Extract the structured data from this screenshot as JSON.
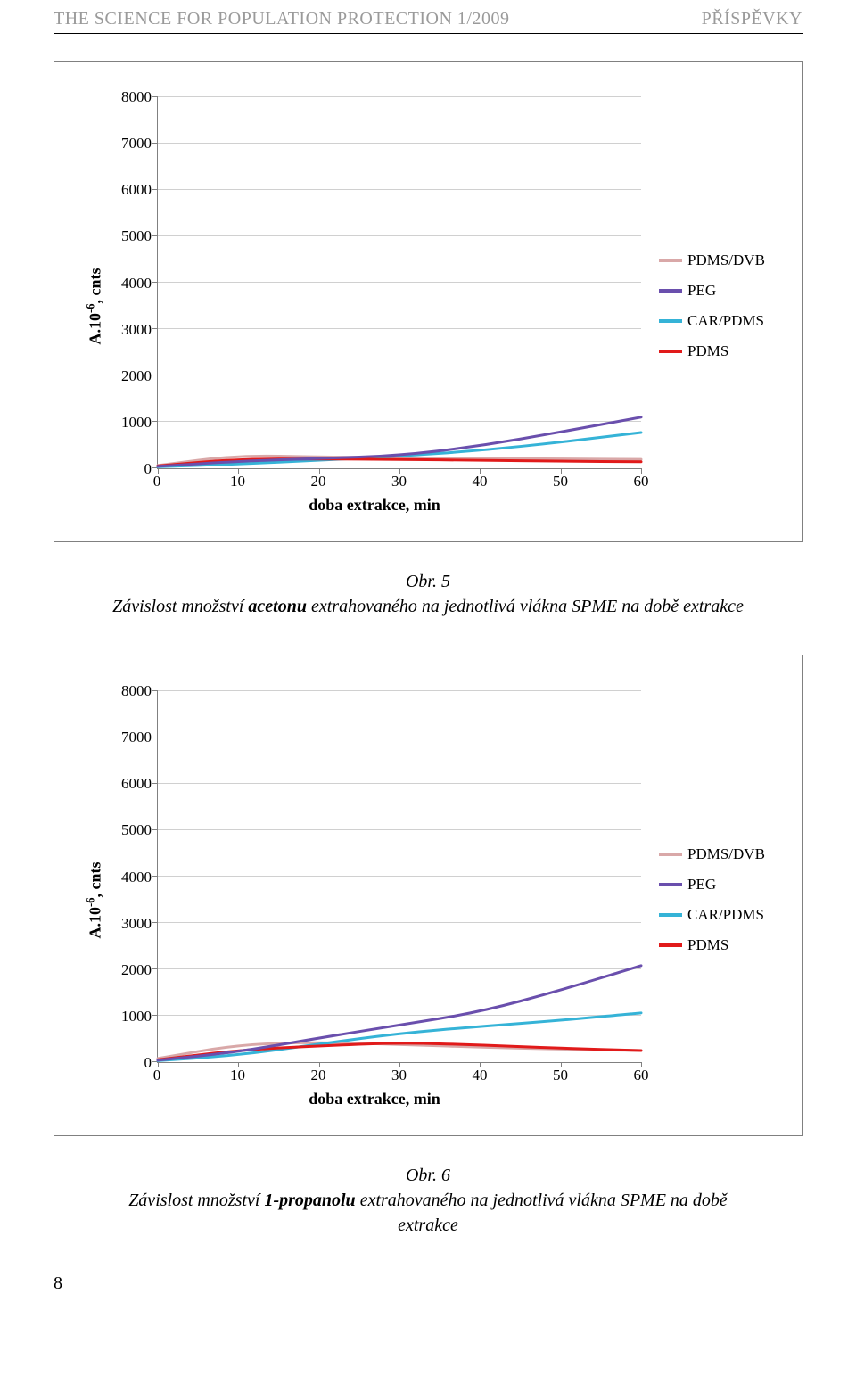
{
  "header": {
    "left": "THE SCIENCE FOR POPULATION PROTECTION 1/2009",
    "right": "PŘÍSPĚVKY",
    "color": "#9a9a9a"
  },
  "legend": {
    "items": [
      {
        "label": "PDMS/DVB",
        "color": "#d9a8a8"
      },
      {
        "label": "PEG",
        "color": "#6a4fad"
      },
      {
        "label": "CAR/PDMS",
        "color": "#35b3d7"
      },
      {
        "label": "PDMS",
        "color": "#e11a1a"
      }
    ]
  },
  "chart_common": {
    "ylabel_html": "A.10<sup>-6</sup>, cnts",
    "xlabel": "doba extrakce, min",
    "ylim": [
      0,
      8000
    ],
    "ytick_step": 1000,
    "xlim": [
      0,
      60
    ],
    "xtick_step": 10,
    "grid_color": "#d0d0d0",
    "line_width": 3
  },
  "chart1": {
    "caption_label": "Obr. 5",
    "caption_pre": "Závislost množství ",
    "caption_bold": "acetonu",
    "caption_post": " extrahovaného na jednotlivá vlákna SPME na době extrakce",
    "series": {
      "pdms_dvb": {
        "x": [
          0,
          10,
          20,
          30,
          40,
          50,
          60
        ],
        "y": [
          60,
          280,
          240,
          230,
          210,
          200,
          190
        ]
      },
      "peg": {
        "x": [
          0,
          10,
          20,
          30,
          40,
          50,
          60
        ],
        "y": [
          40,
          150,
          210,
          270,
          480,
          780,
          1100
        ]
      },
      "car_pdms": {
        "x": [
          0,
          10,
          20,
          30,
          40,
          50,
          60
        ],
        "y": [
          30,
          90,
          170,
          260,
          380,
          560,
          770
        ]
      },
      "pdms": {
        "x": [
          0,
          10,
          20,
          30,
          40,
          50,
          60
        ],
        "y": [
          50,
          200,
          200,
          190,
          170,
          150,
          140
        ]
      }
    }
  },
  "chart2": {
    "caption_label": "Obr. 6",
    "caption_pre": "Závislost množství ",
    "caption_bold": "1-propanolu",
    "caption_post": " extrahovaného na jednotlivá vlákna SPME na době extrakce",
    "series": {
      "pdms_dvb": {
        "x": [
          0,
          10,
          20,
          30,
          40,
          50,
          60
        ],
        "y": [
          80,
          380,
          430,
          380,
          320,
          280,
          250
        ]
      },
      "peg": {
        "x": [
          0,
          10,
          20,
          30,
          40,
          50,
          60
        ],
        "y": [
          40,
          220,
          520,
          800,
          1080,
          1550,
          2080
        ]
      },
      "car_pdms": {
        "x": [
          0,
          10,
          20,
          30,
          40,
          50,
          60
        ],
        "y": [
          30,
          150,
          390,
          620,
          770,
          900,
          1060
        ]
      },
      "pdms": {
        "x": [
          0,
          10,
          20,
          30,
          40,
          50,
          60
        ],
        "y": [
          50,
          260,
          350,
          420,
          370,
          300,
          250
        ]
      }
    }
  },
  "page_number": "8"
}
